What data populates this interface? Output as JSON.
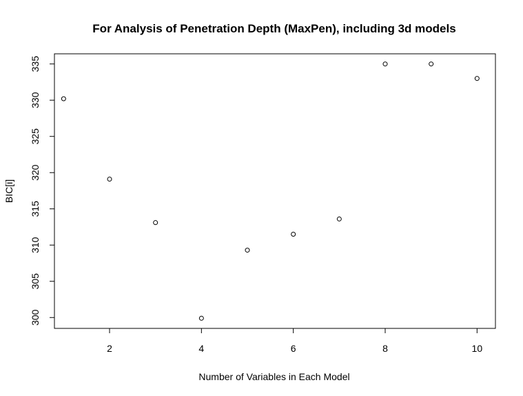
{
  "chart_data": {
    "type": "scatter",
    "title": "For Analysis of Penetration Depth (MaxPen), including 3d models",
    "xlabel": "Number of Variables in Each Model",
    "ylabel": "BIC[i]",
    "x": [
      1,
      2,
      3,
      4,
      5,
      6,
      7,
      8,
      9,
      10
    ],
    "y": [
      330.2,
      319.1,
      313.1,
      299.9,
      309.3,
      311.5,
      313.6,
      335.0,
      335.0,
      333.0
    ],
    "xlim": [
      0.8,
      10.4
    ],
    "ylim": [
      298.5,
      336.4
    ],
    "xticks": [
      "2",
      "4",
      "6",
      "8",
      "10"
    ],
    "yticks": [
      "300",
      "305",
      "310",
      "315",
      "320",
      "325",
      "330",
      "335"
    ],
    "grid": false,
    "legend": "none",
    "colors": {
      "point_stroke": "#000000",
      "axis": "#000000",
      "background": "#ffffff"
    }
  }
}
